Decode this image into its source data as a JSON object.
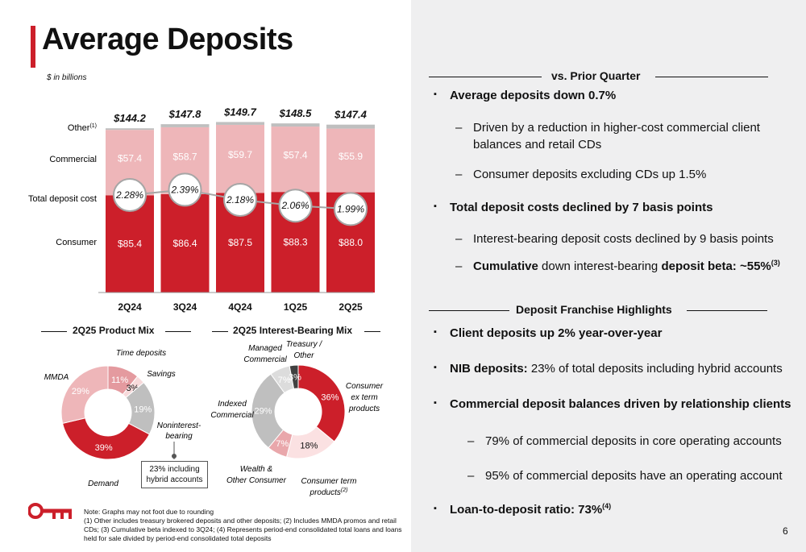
{
  "title": "Average Deposits",
  "subtitle": "$ in billions",
  "page_number": "6",
  "colors": {
    "consumer": "#cc1f2a",
    "commercial": "#eeb6b9",
    "other": "#bfbfbf",
    "accent": "#cc1f2a",
    "panel": "#efeff0"
  },
  "chart_data": [
    {
      "type": "bar",
      "categories": [
        "2Q24",
        "3Q24",
        "4Q24",
        "1Q25",
        "2Q25"
      ],
      "series": [
        {
          "name": "Consumer",
          "values": [
            85.4,
            86.4,
            87.5,
            88.3,
            88.0
          ],
          "labels": [
            "$85.4",
            "$86.4",
            "$87.5",
            "$88.3",
            "$88.0"
          ]
        },
        {
          "name": "Commercial",
          "values": [
            57.4,
            58.7,
            59.7,
            57.4,
            55.9
          ],
          "labels": [
            "$57.4",
            "$58.7",
            "$59.7",
            "$57.4",
            "$55.9"
          ]
        },
        {
          "name": "Other",
          "values": [
            1.4,
            2.7,
            2.5,
            2.8,
            3.5
          ]
        }
      ],
      "totals": [
        144.2,
        147.8,
        149.7,
        148.5,
        147.4
      ],
      "total_labels": [
        "$144.2",
        "$147.8",
        "$149.7",
        "$148.5",
        "$147.4"
      ],
      "line_series": {
        "name": "Total deposit cost",
        "values": [
          2.28,
          2.39,
          2.18,
          2.06,
          1.99
        ],
        "labels": [
          "2.28%",
          "2.39%",
          "2.18%",
          "2.06%",
          "1.99%"
        ]
      },
      "row_labels": {
        "other": "Other",
        "other_sup": "(1)",
        "commercial": "Commercial",
        "cost": "Total deposit cost",
        "consumer": "Consumer"
      },
      "ylim": [
        0,
        160
      ]
    },
    {
      "type": "pie",
      "title": "2Q25 Product Mix",
      "slices": [
        {
          "name": "Time deposits",
          "value": 11,
          "label": "11%",
          "color": "#e49a9f"
        },
        {
          "name": "Savings",
          "value": 3,
          "label": "3%",
          "color": "#f7dadb"
        },
        {
          "name": "Noninterest-bearing",
          "value": 19,
          "label": "19%",
          "color": "#bfbfbf"
        },
        {
          "name": "Demand",
          "value": 39,
          "label": "39%",
          "color": "#cc1f2a"
        },
        {
          "name": "MMDA",
          "value": 29,
          "label": "29%",
          "color": "#eeb6b9"
        }
      ],
      "callout": {
        "line1": "23% including",
        "line2": "hybrid accounts"
      }
    },
    {
      "type": "pie",
      "title": "2Q25 Interest-Bearing Mix",
      "slices": [
        {
          "name": "Consumer ex term products",
          "value": 36,
          "label": "36%",
          "color": "#cc1f2a"
        },
        {
          "name": "Consumer term products",
          "value": 18,
          "label": "18%",
          "color": "#fbe1e2"
        },
        {
          "name": "Wealth & Other Consumer",
          "value": 7,
          "label": "7%",
          "color": "#e9a7ab"
        },
        {
          "name": "Indexed Commercial",
          "value": 29,
          "label": "29%",
          "color": "#bfbfbf"
        },
        {
          "name": "Managed Commercial",
          "value": 7,
          "label": "7%",
          "color": "#dcdcdc"
        },
        {
          "name": "Treasury / Other",
          "value": 3,
          "label": "3%",
          "color": "#404040"
        }
      ]
    }
  ],
  "pie_labels": {
    "time_deposits": "Time deposits",
    "savings": "Savings",
    "mmda": "MMDA",
    "nib_line1": "Noninterest-",
    "nib_line2": "bearing",
    "demand": "Demand",
    "managed_line1": "Managed",
    "managed_line2": "Commercial",
    "treasury_line1": "Treasury /",
    "treasury_line2": "Other",
    "cons_ex_line1": "Consumer",
    "cons_ex_line2": "ex term",
    "cons_ex_line3": "products",
    "indexed_line1": "Indexed",
    "indexed_line2": "Commercial",
    "wealth_line1": "Wealth &",
    "wealth_line2": "Other Consumer",
    "cons_term_line1": "Consumer term",
    "cons_term_line2": "products",
    "cons_term_sup": "(2)"
  },
  "vs_prior": {
    "header": "vs. Prior Quarter",
    "b1": "Average deposits down 0.7%",
    "b1_s1_line1": "Driven by a reduction in higher-cost commercial client",
    "b1_s1_line2": "balances and retail CDs",
    "b1_s2": "Consumer deposits excluding CDs up 1.5%",
    "b2": "Total deposit costs declined by 7 basis points",
    "b2_s1": "Interest-bearing deposit costs declined by 9 basis points",
    "b2_s2_a": "Cumulative",
    "b2_s2_b": " down interest-bearing ",
    "b2_s2_c": "deposit beta: ~55%",
    "b2_s2_sup": "(3)"
  },
  "franchise": {
    "header": "Deposit Franchise Highlights",
    "b1": "Client deposits up 2% year-over-year",
    "b2_a": "NIB deposits:",
    "b2_b": " 23% of total deposits including hybrid accounts",
    "b3": "Commercial deposit balances driven by relationship clients",
    "b3_s1": "79% of commercial deposits in core operating accounts",
    "b3_s2": "95% of commercial deposits have an operating account",
    "b4": "Loan-to-deposit ratio: 73%",
    "b4_sup": "(4)"
  },
  "markers": {
    "bullet": "▪",
    "dash": "–"
  },
  "notes": {
    "l1": "Note: Graphs may not foot due to rounding",
    "l2": "(1) Other includes treasury brokered deposits and other deposits; (2) Includes MMDA promos and retail CDs; (3) Cumulative beta indexed to 3Q24; (4) Represents period-end consolidated total loans and loans held for sale divided by period-end consolidated total deposits"
  }
}
